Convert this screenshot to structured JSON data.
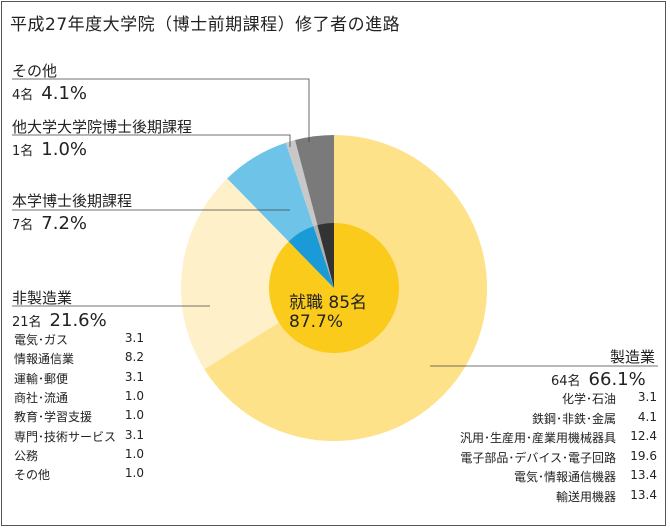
{
  "title": "平成27年度大学院（博士前期課程）修了者の進路",
  "chart_data": {
    "type": "pie",
    "title": "平成27年度大学院（博士前期課程）修了者の進路",
    "center": {
      "line1": "就職 85名",
      "line2": "87.7%"
    },
    "slices": [
      {
        "name": "製造業",
        "count": "64名",
        "percent": "66.1%",
        "value": 66.1,
        "color": "#FDE28A",
        "inner": "#FBCB1C",
        "breakdown": [
          {
            "name": "化学･石油",
            "value": "3.1"
          },
          {
            "name": "鉄鋼･非鉄･金属",
            "value": "4.1"
          },
          {
            "name": "汎用･生産用･産業用機械器具",
            "value": "12.4"
          },
          {
            "name": "電子部品･デバイス･電子回路",
            "value": "19.6"
          },
          {
            "name": "電気･情報通信機器",
            "value": "13.4"
          },
          {
            "name": "輸送用機器",
            "value": "13.4"
          }
        ]
      },
      {
        "name": "非製造業",
        "count": "21名",
        "percent": "21.6%",
        "value": 21.6,
        "color": "#FEF1CA",
        "inner": "#FBCB1C",
        "breakdown": [
          {
            "name": "電気･ガス",
            "value": "3.1"
          },
          {
            "name": "情報通信業",
            "value": "8.2"
          },
          {
            "name": "運輸･郵便",
            "value": "3.1"
          },
          {
            "name": "商社･流通",
            "value": "1.0"
          },
          {
            "name": "教育･学習支援",
            "value": "1.0"
          },
          {
            "name": "専門･技術サービス",
            "value": "3.1"
          },
          {
            "name": "公務",
            "value": "1.0"
          },
          {
            "name": "その他",
            "value": "1.0"
          }
        ]
      },
      {
        "name": "本学博士後期課程",
        "count": "7名",
        "percent": "7.2%",
        "value": 7.2,
        "color": "#6EC4E8",
        "inner": "#1A9AD6",
        "breakdown": []
      },
      {
        "name": "他大学大学院博士後期課程",
        "count": "1名",
        "percent": "1.0%",
        "value": 1.0,
        "color": "#C8C8C8",
        "inner": "#B0B0B0",
        "breakdown": []
      },
      {
        "name": "その他",
        "count": "4名",
        "percent": "4.1%",
        "value": 4.1,
        "color": "#7A7A7A",
        "inner": "#333333",
        "breakdown": []
      }
    ]
  }
}
